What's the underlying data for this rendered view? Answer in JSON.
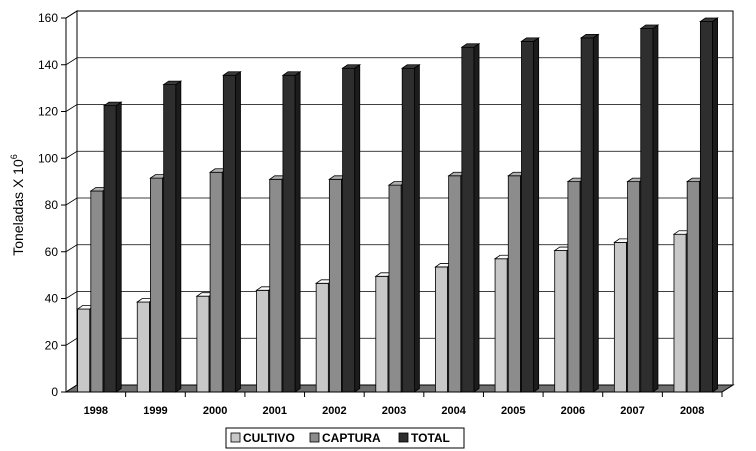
{
  "chart_data": {
    "type": "bar",
    "style": "3d-clustered-column",
    "ylabel": "Toneladas X 10",
    "ylabel_exponent": "6",
    "xlabel": "",
    "ylim": [
      0,
      160
    ],
    "ytick_step": 20,
    "grid": true,
    "legend_position": "bottom",
    "categories": [
      "1998",
      "1999",
      "2000",
      "2001",
      "2002",
      "2003",
      "2004",
      "2005",
      "2006",
      "2007",
      "2008"
    ],
    "series": [
      {
        "name": "CULTIVO",
        "color": "#c8c8c8",
        "values": [
          35.5,
          38.5,
          41,
          43.5,
          46.5,
          49.5,
          53.5,
          57,
          60.5,
          64,
          67.5
        ]
      },
      {
        "name": "CAPTURA",
        "color": "#8c8c8c",
        "values": [
          86,
          91.5,
          94,
          91,
          91,
          88.5,
          92.5,
          92.5,
          90,
          90,
          90
        ]
      },
      {
        "name": "TOTAL",
        "color": "#2e2e2e",
        "values": [
          122.5,
          131.5,
          135.5,
          135.5,
          138.5,
          138.5,
          147.5,
          150,
          151.5,
          155.5,
          158.5
        ]
      }
    ]
  }
}
